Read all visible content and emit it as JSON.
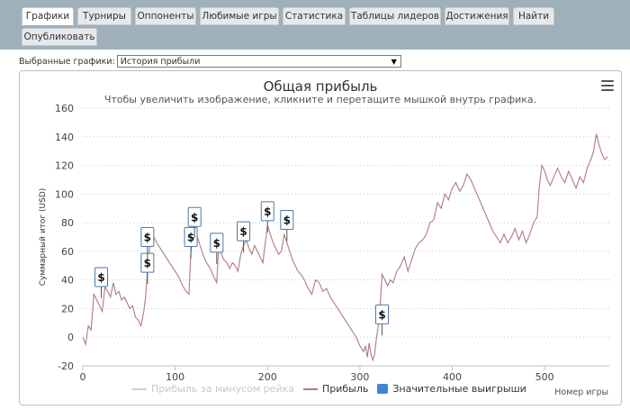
{
  "tabs": [
    {
      "label": "Графики",
      "active": true
    },
    {
      "label": "Турниры"
    },
    {
      "label": "Оппоненты"
    },
    {
      "label": "Любимые игры"
    },
    {
      "label": "Статистика"
    },
    {
      "label": "Таблицы лидеров"
    },
    {
      "label": "Достижения"
    },
    {
      "label": "Найти"
    },
    {
      "label": "Опубликовать"
    }
  ],
  "selector": {
    "label": "Выбранные графики:",
    "value": "История прибыли"
  },
  "chart": {
    "title": "Общая прибыль",
    "subtitle": "Чтобы увеличить изображение, кликните и перетащите мышкой внутрь графика.",
    "menu_icon": "hamburger-menu-icon",
    "legend": {
      "rake_label": "Прибыль за минусом рейка",
      "profit_label": "Прибыль",
      "big_wins_label": "Значительные выигрыши"
    }
  },
  "colors": {
    "profit_line": "#b07a84",
    "rake_line": "#d0d0d0",
    "big_wins": "#3f86cf",
    "tab_bar": "#9fb0bb",
    "marker_border": "#4a7aab"
  },
  "chart_data": {
    "type": "line",
    "title": "Общая прибыль",
    "subtitle": "Чтобы увеличить изображение, кликните и перетащите мышкой внутрь графика.",
    "xlabel": "Номер игры",
    "ylabel": "Суммарный итог (USD)",
    "xlim": [
      0,
      570
    ],
    "ylim": [
      -20,
      160
    ],
    "x_ticks": [
      0,
      100,
      200,
      300,
      400,
      500
    ],
    "y_ticks": [
      -20,
      0,
      20,
      40,
      60,
      80,
      100,
      120,
      140,
      160
    ],
    "grid": "horizontal-dotted",
    "legend_position": "bottom",
    "series": [
      {
        "name": "Прибыль",
        "points": [
          [
            0,
            0
          ],
          [
            3,
            -5
          ],
          [
            6,
            8
          ],
          [
            9,
            5
          ],
          [
            12,
            30
          ],
          [
            15,
            26
          ],
          [
            18,
            22
          ],
          [
            21,
            18
          ],
          [
            24,
            35
          ],
          [
            27,
            32
          ],
          [
            30,
            28
          ],
          [
            33,
            38
          ],
          [
            36,
            30
          ],
          [
            39,
            32
          ],
          [
            42,
            26
          ],
          [
            45,
            28
          ],
          [
            48,
            24
          ],
          [
            51,
            20
          ],
          [
            54,
            22
          ],
          [
            57,
            14
          ],
          [
            60,
            12
          ],
          [
            63,
            8
          ],
          [
            66,
            18
          ],
          [
            68,
            28
          ],
          [
            70,
            46
          ],
          [
            72,
            60
          ],
          [
            74,
            75
          ],
          [
            77,
            70
          ],
          [
            80,
            66
          ],
          [
            84,
            62
          ],
          [
            88,
            58
          ],
          [
            92,
            54
          ],
          [
            96,
            50
          ],
          [
            100,
            46
          ],
          [
            104,
            42
          ],
          [
            108,
            36
          ],
          [
            112,
            32
          ],
          [
            115,
            30
          ],
          [
            117,
            60
          ],
          [
            119,
            68
          ],
          [
            121,
            76
          ],
          [
            124,
            70
          ],
          [
            127,
            64
          ],
          [
            130,
            58
          ],
          [
            134,
            52
          ],
          [
            138,
            48
          ],
          [
            142,
            42
          ],
          [
            145,
            38
          ],
          [
            147,
            62
          ],
          [
            150,
            58
          ],
          [
            153,
            54
          ],
          [
            156,
            52
          ],
          [
            159,
            48
          ],
          [
            162,
            52
          ],
          [
            165,
            50
          ],
          [
            168,
            46
          ],
          [
            171,
            58
          ],
          [
            174,
            64
          ],
          [
            177,
            68
          ],
          [
            180,
            62
          ],
          [
            183,
            58
          ],
          [
            186,
            64
          ],
          [
            189,
            60
          ],
          [
            192,
            56
          ],
          [
            195,
            52
          ],
          [
            198,
            68
          ],
          [
            200,
            78
          ],
          [
            203,
            72
          ],
          [
            206,
            66
          ],
          [
            209,
            62
          ],
          [
            212,
            58
          ],
          [
            215,
            60
          ],
          [
            218,
            72
          ],
          [
            221,
            66
          ],
          [
            224,
            60
          ],
          [
            227,
            54
          ],
          [
            230,
            50
          ],
          [
            233,
            46
          ],
          [
            236,
            44
          ],
          [
            240,
            40
          ],
          [
            244,
            34
          ],
          [
            248,
            30
          ],
          [
            252,
            40
          ],
          [
            256,
            38
          ],
          [
            260,
            32
          ],
          [
            264,
            34
          ],
          [
            268,
            28
          ],
          [
            272,
            24
          ],
          [
            276,
            20
          ],
          [
            280,
            16
          ],
          [
            284,
            12
          ],
          [
            288,
            8
          ],
          [
            292,
            4
          ],
          [
            296,
            0
          ],
          [
            300,
            -6
          ],
          [
            304,
            -10
          ],
          [
            306,
            -6
          ],
          [
            308,
            -14
          ],
          [
            310,
            -4
          ],
          [
            312,
            -12
          ],
          [
            314,
            -16
          ],
          [
            316,
            -12
          ],
          [
            318,
            0
          ],
          [
            321,
            12
          ],
          [
            324,
            44
          ],
          [
            327,
            40
          ],
          [
            330,
            36
          ],
          [
            333,
            40
          ],
          [
            336,
            38
          ],
          [
            340,
            46
          ],
          [
            344,
            50
          ],
          [
            348,
            56
          ],
          [
            352,
            46
          ],
          [
            356,
            54
          ],
          [
            360,
            62
          ],
          [
            364,
            66
          ],
          [
            368,
            68
          ],
          [
            372,
            72
          ],
          [
            376,
            80
          ],
          [
            380,
            82
          ],
          [
            384,
            94
          ],
          [
            388,
            90
          ],
          [
            392,
            100
          ],
          [
            396,
            96
          ],
          [
            400,
            104
          ],
          [
            404,
            108
          ],
          [
            408,
            102
          ],
          [
            412,
            106
          ],
          [
            416,
            114
          ],
          [
            420,
            110
          ],
          [
            424,
            104
          ],
          [
            428,
            98
          ],
          [
            432,
            92
          ],
          [
            436,
            86
          ],
          [
            440,
            80
          ],
          [
            444,
            74
          ],
          [
            448,
            70
          ],
          [
            452,
            66
          ],
          [
            456,
            72
          ],
          [
            460,
            66
          ],
          [
            464,
            70
          ],
          [
            468,
            76
          ],
          [
            472,
            68
          ],
          [
            476,
            74
          ],
          [
            480,
            66
          ],
          [
            484,
            72
          ],
          [
            488,
            80
          ],
          [
            492,
            84
          ],
          [
            494,
            104
          ],
          [
            497,
            120
          ],
          [
            500,
            116
          ],
          [
            503,
            110
          ],
          [
            506,
            106
          ],
          [
            510,
            112
          ],
          [
            514,
            118
          ],
          [
            518,
            112
          ],
          [
            522,
            108
          ],
          [
            526,
            116
          ],
          [
            530,
            110
          ],
          [
            534,
            104
          ],
          [
            538,
            112
          ],
          [
            542,
            108
          ],
          [
            546,
            118
          ],
          [
            550,
            124
          ],
          [
            553,
            130
          ],
          [
            556,
            142
          ],
          [
            559,
            134
          ],
          [
            562,
            128
          ],
          [
            565,
            124
          ],
          [
            568,
            126
          ]
        ]
      }
    ],
    "big_wins": [
      {
        "x": 20,
        "y": 36
      },
      {
        "x": 70,
        "y": 46
      },
      {
        "x": 70,
        "y": 64
      },
      {
        "x": 117,
        "y": 64
      },
      {
        "x": 121,
        "y": 78
      },
      {
        "x": 145,
        "y": 60
      },
      {
        "x": 174,
        "y": 68
      },
      {
        "x": 200,
        "y": 82
      },
      {
        "x": 221,
        "y": 76
      },
      {
        "x": 324,
        "y": 10
      }
    ]
  }
}
